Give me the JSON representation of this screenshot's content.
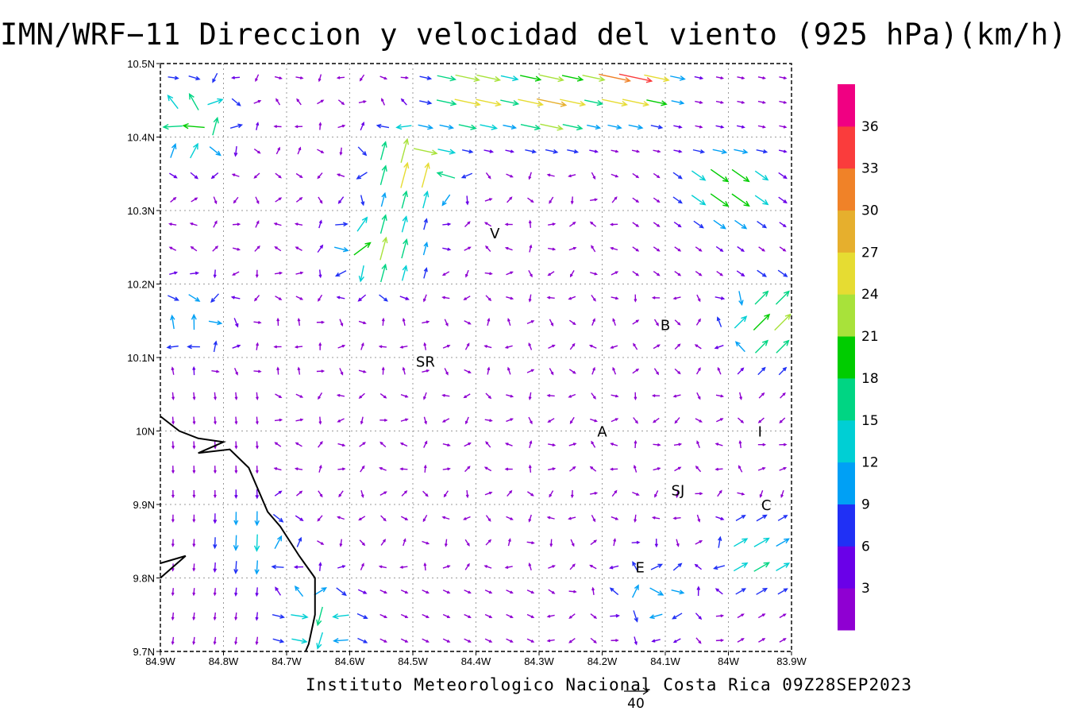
{
  "title": "IMN/WRF−11 Direccion y velocidad del viento (925 hPa)(km/h)",
  "credit": "Instituto Meteorologico Nacional Costa Rica 09Z28SEP2023",
  "reference_vector_label": "40",
  "map": {
    "xlim": [
      -84.9,
      -83.9
    ],
    "ylim": [
      9.7,
      10.5
    ],
    "x_ticks": [
      {
        "v": -84.9,
        "label": "84.9W"
      },
      {
        "v": -84.8,
        "label": "84.8W"
      },
      {
        "v": -84.7,
        "label": "84.7W"
      },
      {
        "v": -84.6,
        "label": "84.6W"
      },
      {
        "v": -84.5,
        "label": "84.5W"
      },
      {
        "v": -84.4,
        "label": "84.4W"
      },
      {
        "v": -84.3,
        "label": "84.3W"
      },
      {
        "v": -84.2,
        "label": "84.2W"
      },
      {
        "v": -84.1,
        "label": "84.1W"
      },
      {
        "v": -84.0,
        "label": "84W"
      },
      {
        "v": -83.9,
        "label": "83.9W"
      }
    ],
    "y_ticks": [
      {
        "v": 9.7,
        "label": "9.7N"
      },
      {
        "v": 9.8,
        "label": "9.8N"
      },
      {
        "v": 9.9,
        "label": "9.9N"
      },
      {
        "v": 10.0,
        "label": "10N"
      },
      {
        "v": 10.1,
        "label": "10.1N"
      },
      {
        "v": 10.2,
        "label": "10.2N"
      },
      {
        "v": 10.3,
        "label": "10.3N"
      },
      {
        "v": 10.4,
        "label": "10.4N"
      },
      {
        "v": 10.5,
        "label": "10.5N"
      }
    ],
    "cities": [
      {
        "label": "V",
        "lon": -84.37,
        "lat": 10.27
      },
      {
        "label": "B",
        "lon": -84.1,
        "lat": 10.145
      },
      {
        "label": "SR",
        "lon": -84.48,
        "lat": 10.095
      },
      {
        "label": "A",
        "lon": -84.2,
        "lat": 10.0
      },
      {
        "label": "I",
        "lon": -83.95,
        "lat": 10.0
      },
      {
        "label": "SJ",
        "lon": -84.08,
        "lat": 9.92
      },
      {
        "label": "C",
        "lon": -83.94,
        "lat": 9.9
      },
      {
        "label": "E",
        "lon": -84.14,
        "lat": 9.815
      }
    ],
    "coastline": [
      [
        -84.9,
        10.02
      ],
      [
        -84.87,
        10.0
      ],
      [
        -84.84,
        9.99
      ],
      [
        -84.8,
        9.985
      ],
      [
        -84.84,
        9.97
      ],
      [
        -84.79,
        9.975
      ],
      [
        -84.76,
        9.95
      ],
      [
        -84.73,
        9.89
      ],
      [
        -84.71,
        9.87
      ],
      [
        -84.68,
        9.83
      ],
      [
        -84.655,
        9.8
      ],
      [
        -84.655,
        9.75
      ],
      [
        -84.665,
        9.71
      ],
      [
        -84.67,
        9.7
      ]
    ],
    "coastline_bottom": [
      [
        -84.9,
        9.82
      ],
      [
        -84.86,
        9.83
      ],
      [
        -84.9,
        9.8
      ]
    ]
  },
  "colorbar": {
    "labels": [
      "3",
      "6",
      "9",
      "12",
      "15",
      "18",
      "21",
      "24",
      "27",
      "30",
      "33",
      "36"
    ],
    "colors": [
      "#8f00d2",
      "#6a00e8",
      "#2030f5",
      "#00a0f5",
      "#00cfd4",
      "#00d583",
      "#00cc00",
      "#a8e23a",
      "#e6dc32",
      "#e6af2d",
      "#f08228",
      "#fa3c3c",
      "#f00082"
    ]
  },
  "wind_regions": {
    "speed_anchors": [
      {
        "lon": -84.16,
        "lat": 10.48,
        "speed": 35
      },
      {
        "lon": -84.28,
        "lat": 10.45,
        "speed": 30
      },
      {
        "lon": -84.4,
        "lat": 10.46,
        "speed": 27
      },
      {
        "lon": -84.5,
        "lat": 10.36,
        "speed": 27
      },
      {
        "lon": -84.55,
        "lat": 10.25,
        "speed": 22
      },
      {
        "lon": -84.0,
        "lat": 10.33,
        "speed": 22
      },
      {
        "lon": -83.93,
        "lat": 10.15,
        "speed": 22
      },
      {
        "lon": -84.85,
        "lat": 10.42,
        "speed": 20
      },
      {
        "lon": -84.65,
        "lat": 9.74,
        "speed": 17
      },
      {
        "lon": -84.75,
        "lat": 9.85,
        "speed": 14
      },
      {
        "lon": -84.85,
        "lat": 10.15,
        "speed": 12
      },
      {
        "lon": -83.95,
        "lat": 9.83,
        "speed": 16
      },
      {
        "lon": -84.12,
        "lat": 9.78,
        "speed": 12
      }
    ]
  }
}
